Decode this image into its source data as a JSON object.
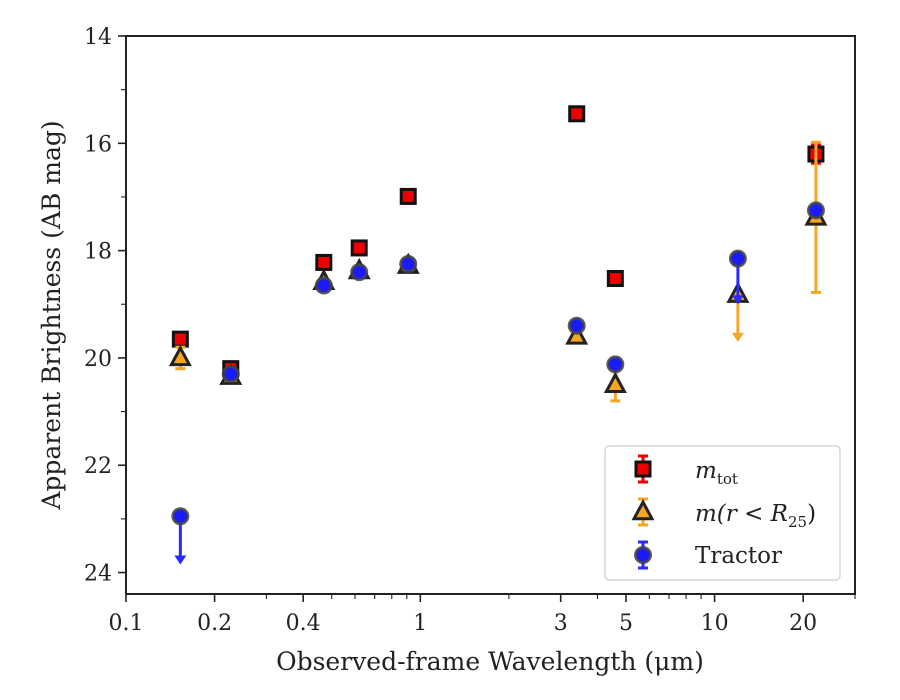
{
  "chart_data": {
    "type": "scatter",
    "xscale": "log",
    "xlim": [
      0.1,
      30
    ],
    "ylim": [
      24.4,
      14
    ],
    "xlabel": "Observed-frame Wavelength (μm)",
    "ylabel": "Apparent Brightness (AB mag)",
    "x_ticks": [
      0.1,
      0.2,
      0.4,
      1,
      3,
      5,
      10,
      20
    ],
    "x_tick_labels": [
      "0.1",
      "0.2",
      "0.4",
      "1",
      "3",
      "5",
      "10",
      "20"
    ],
    "y_ticks": [
      14,
      16,
      18,
      20,
      22,
      24
    ],
    "y_tick_labels": [
      "14",
      "16",
      "18",
      "20",
      "22",
      "24"
    ],
    "legend_position": "lower right",
    "series": [
      {
        "name": "m_tot",
        "legend_label_main": "m",
        "legend_label_sub": "tot",
        "marker": "square",
        "face_color": "#ee0000",
        "edge_color": "#111111",
        "err_color": "#ee0000",
        "points": [
          {
            "x": 0.153,
            "y": 19.65,
            "err": 0.08
          },
          {
            "x": 0.227,
            "y": 20.2,
            "err": 0.08
          },
          {
            "x": 0.47,
            "y": 18.22,
            "err": 0.03
          },
          {
            "x": 0.62,
            "y": 17.95,
            "err": 0.03
          },
          {
            "x": 0.91,
            "y": 16.99,
            "err": 0.03
          },
          {
            "x": 3.4,
            "y": 15.45,
            "err": 0.03
          },
          {
            "x": 4.6,
            "y": 18.52,
            "err": 0.03
          },
          {
            "x": 22.1,
            "y": 16.2,
            "err": 0.17
          }
        ]
      },
      {
        "name": "m(r < R_25)",
        "legend_label_main": "m(r < R",
        "legend_label_sub": "25",
        "legend_label_tail": ")",
        "marker": "triangle",
        "face_color": "#f5a623",
        "edge_color": "#222222",
        "err_color": "#f5a623",
        "points": [
          {
            "x": 0.153,
            "y": 20.0,
            "err": 0.2
          },
          {
            "x": 0.227,
            "y": 20.35,
            "err": 0.08
          },
          {
            "x": 0.47,
            "y": 18.58,
            "err": 0.03
          },
          {
            "x": 0.62,
            "y": 18.38,
            "err": 0.03
          },
          {
            "x": 0.91,
            "y": 18.28,
            "err": 0.03
          },
          {
            "x": 3.4,
            "y": 19.6,
            "err": 0.05
          },
          {
            "x": 4.6,
            "y": 20.5,
            "err": 0.3
          },
          {
            "x": 12.0,
            "y": 18.82,
            "err": 0,
            "upper_limit": true,
            "limit_to": 19.7
          },
          {
            "x": 22.1,
            "y": 17.38,
            "err_low": 1.4,
            "err_high": 1.4
          }
        ]
      },
      {
        "name": "Tractor",
        "legend_label_main": "Tractor",
        "marker": "circle",
        "face_color": "#1a1aff",
        "edge_color": "#444444",
        "err_color": "#2a2aff",
        "points": [
          {
            "x": 0.153,
            "y": 22.95,
            "err": 0,
            "upper_limit": true,
            "limit_to": 23.85
          },
          {
            "x": 0.227,
            "y": 20.3,
            "err": 0.03
          },
          {
            "x": 0.47,
            "y": 18.65,
            "err": 0.03
          },
          {
            "x": 0.62,
            "y": 18.4,
            "err": 0.03
          },
          {
            "x": 0.91,
            "y": 18.25,
            "err": 0.03
          },
          {
            "x": 3.4,
            "y": 19.4,
            "err": 0.03
          },
          {
            "x": 4.6,
            "y": 20.12,
            "err": 0.03
          },
          {
            "x": 12.0,
            "y": 18.15,
            "err": 0.03,
            "upper_limit": true,
            "limit_to": 19.0
          },
          {
            "x": 22.1,
            "y": 17.25,
            "err": 0.03
          }
        ]
      }
    ]
  }
}
